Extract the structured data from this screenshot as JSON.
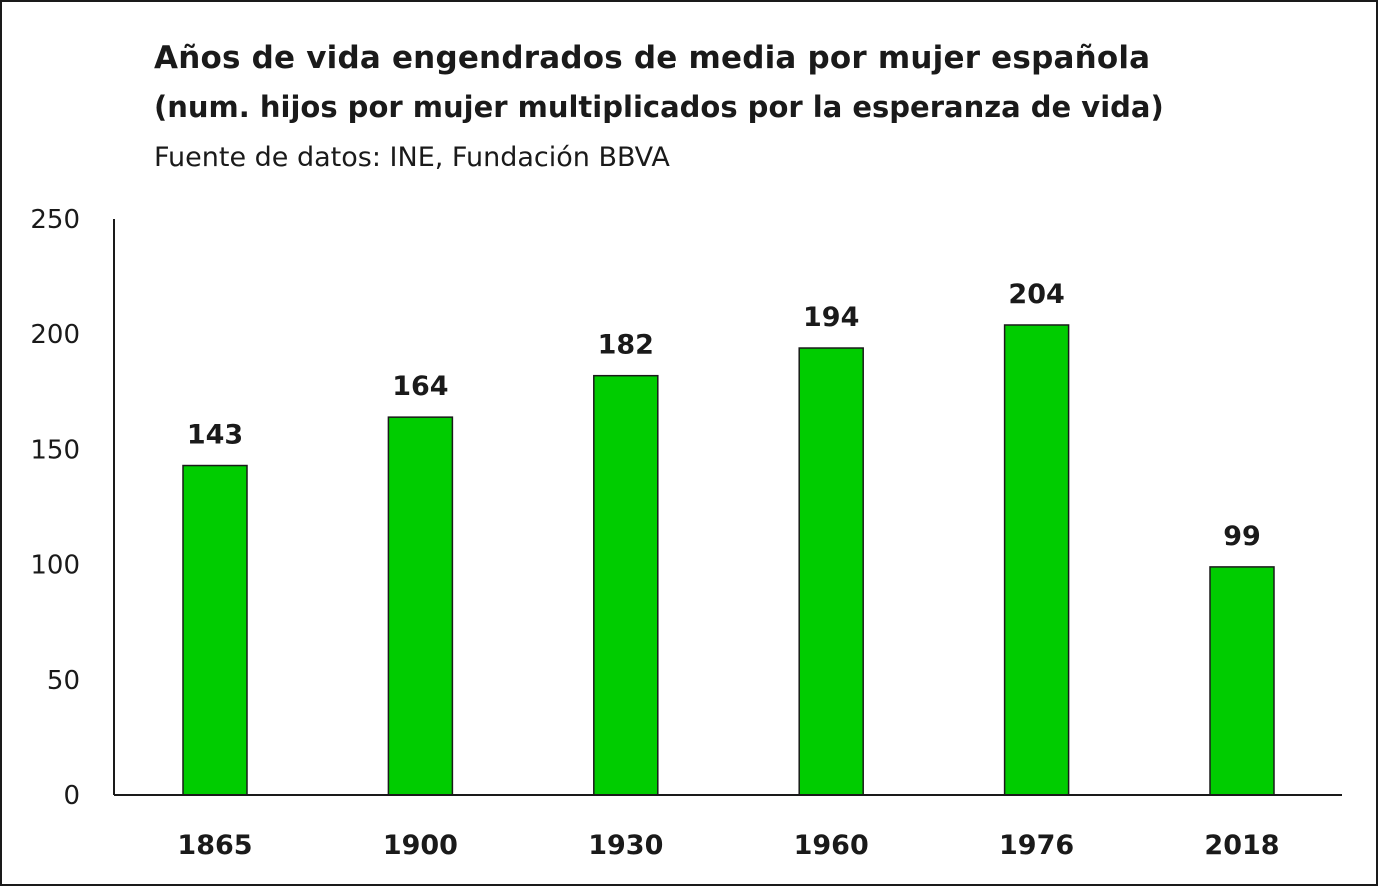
{
  "chart_data": {
    "type": "bar",
    "title": "Años de vida engendrados de media por mujer española",
    "subtitle": "(num. hijos por mujer multiplicados por la esperanza de vida)",
    "source": "Fuente de datos: INE, Fundación BBVA",
    "categories": [
      "1865",
      "1900",
      "1930",
      "1960",
      "1976",
      "2018"
    ],
    "values": [
      143,
      164,
      182,
      194,
      204,
      99
    ],
    "data_labels": [
      "143",
      "164",
      "182",
      "194",
      "204",
      "99"
    ],
    "ylim": [
      0,
      250
    ],
    "yticks": [
      0,
      50,
      100,
      150,
      200,
      250
    ],
    "xlabel": "",
    "ylabel": "",
    "grid": false,
    "legend": "none",
    "bar_color": "#00cc00",
    "bar_edge_color": "#1a1a1a"
  }
}
